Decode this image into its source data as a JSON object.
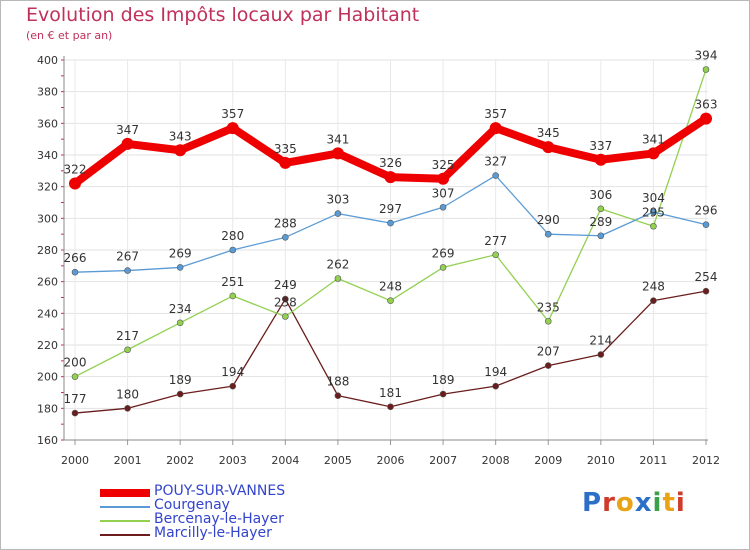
{
  "title": "Evolution des Impôts locaux par Habitant",
  "subtitle": "(en € et par an)",
  "logo": {
    "text": "Proxiti",
    "letters": [
      "P",
      "r",
      "o",
      "x",
      "i",
      "t",
      "i"
    ],
    "colors": [
      "#2b6fc7",
      "#d03a2a",
      "#e8a317",
      "#2b6fc7",
      "#3aa14a",
      "#e8a317",
      "#d03a2a"
    ]
  },
  "chart_data": {
    "type": "line",
    "x": [
      "2000",
      "2001",
      "2002",
      "2003",
      "2004",
      "2005",
      "2006",
      "2007",
      "2008",
      "2009",
      "2010",
      "2011",
      "2012"
    ],
    "ylim": [
      160,
      400
    ],
    "yticks": [
      160,
      180,
      200,
      220,
      240,
      260,
      280,
      300,
      320,
      340,
      360,
      380,
      400
    ],
    "grid": true,
    "legend_position": "bottom-left",
    "series": [
      {
        "name": "POUY-SUR-VANNES",
        "color": "#ee0000",
        "values": [
          322,
          347,
          343,
          357,
          335,
          341,
          326,
          325,
          357,
          345,
          337,
          341,
          363
        ]
      },
      {
        "name": "Courgenay",
        "color": "#5b9bd5",
        "values": [
          266,
          267,
          269,
          280,
          288,
          303,
          297,
          307,
          327,
          290,
          289,
          304,
          296
        ]
      },
      {
        "name": "Bercenay-le-Hayer",
        "color": "#92d050",
        "values": [
          200,
          217,
          234,
          251,
          238,
          262,
          248,
          269,
          277,
          235,
          306,
          295,
          394
        ]
      },
      {
        "name": "Marcilly-le-Hayer",
        "color": "#6b1d1d",
        "values": [
          177,
          180,
          189,
          194,
          249,
          188,
          181,
          189,
          194,
          207,
          214,
          248,
          254
        ]
      }
    ]
  }
}
